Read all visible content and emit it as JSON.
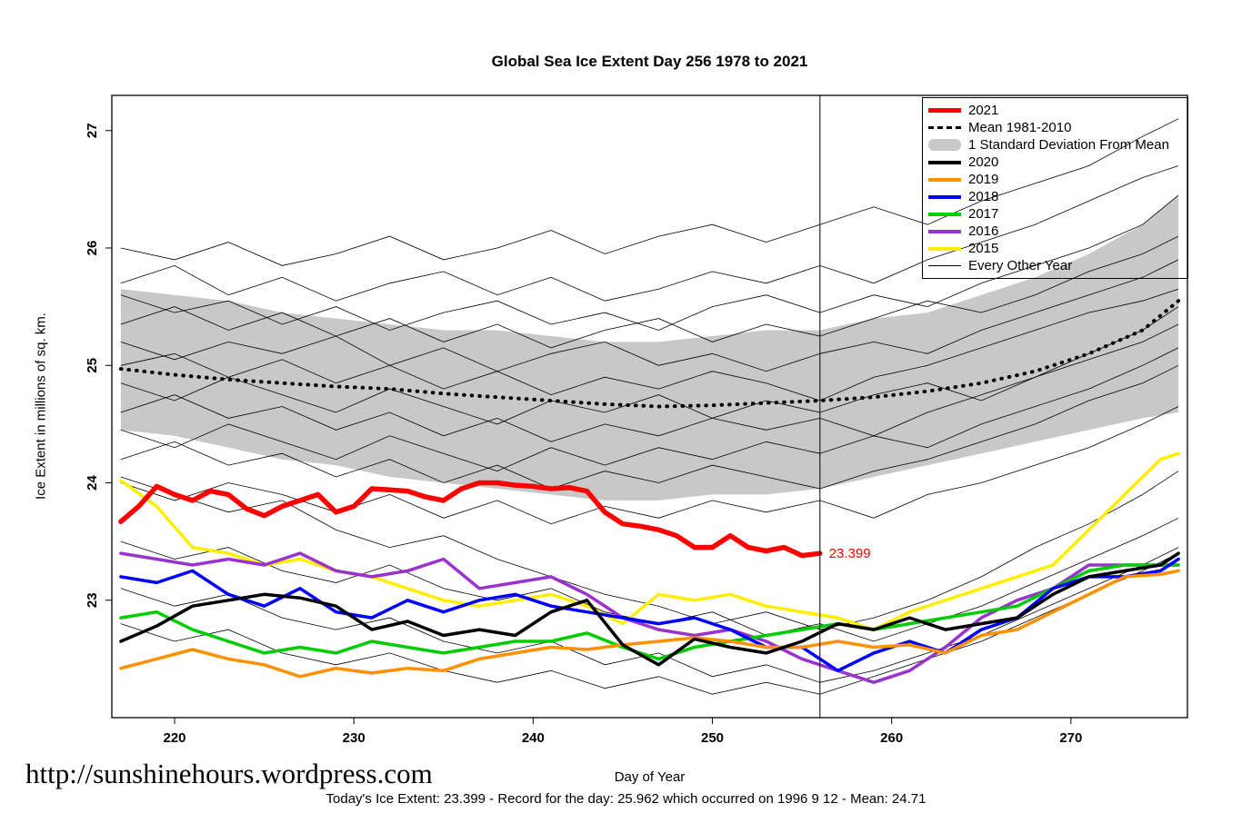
{
  "footer": {
    "url": "http://sunshinehours.wordpress.com",
    "summary": "Today's Ice Extent: 23.399  - Record for the day: 25.962 which occurred on 1996 9 12  - Mean: 24.71"
  },
  "legend": {
    "items": [
      {
        "label": "2021",
        "color": "#FF0000",
        "style": "line",
        "width": 5
      },
      {
        "label": "Mean 1981-2010",
        "color": "#000000",
        "style": "dashed"
      },
      {
        "label": "1 Standard Deviation From Mean",
        "color": "#C8C8C8",
        "style": "patch"
      },
      {
        "label": "2020",
        "color": "#000000",
        "style": "line",
        "width": 4
      },
      {
        "label": "2019",
        "color": "#FF9000",
        "style": "line",
        "width": 4
      },
      {
        "label": "2018",
        "color": "#0000FF",
        "style": "line",
        "width": 4
      },
      {
        "label": "2017",
        "color": "#00CD00",
        "style": "line",
        "width": 4
      },
      {
        "label": "2016",
        "color": "#9A32CD",
        "style": "line",
        "width": 4
      },
      {
        "label": "2015",
        "color": "#FFEE00",
        "style": "line",
        "width": 4
      },
      {
        "label": "Every Other Year",
        "color": "#000000",
        "style": "line",
        "width": 1
      }
    ]
  },
  "chart_data": {
    "type": "line",
    "title": "Global Sea Ice Extent Day 256 1978 to 2021",
    "xlabel": "Day of Year",
    "ylabel": "Ice Extent in millions of sq. km.",
    "xlim": [
      216.5,
      276.5
    ],
    "ylim": [
      22.0,
      27.3
    ],
    "xticks": [
      220,
      230,
      240,
      250,
      260,
      270
    ],
    "yticks": [
      23,
      24,
      25,
      26,
      27
    ],
    "vline_x": 256,
    "annotation": {
      "text": "23.399",
      "x": 256.3,
      "y": 23.4,
      "color": "#FF0000"
    },
    "base_x": [
      217,
      220,
      223,
      226,
      229,
      232,
      235,
      238,
      241,
      244,
      247,
      250,
      253,
      256,
      259,
      262,
      265,
      268,
      271,
      274,
      276
    ],
    "band": {
      "label": "1 Standard Deviation From Mean",
      "color": "#C8C8C8",
      "upper": [
        25.65,
        25.6,
        25.55,
        25.45,
        25.4,
        25.35,
        25.3,
        25.3,
        25.25,
        25.2,
        25.2,
        25.25,
        25.3,
        25.3,
        25.4,
        25.45,
        25.6,
        25.75,
        25.95,
        26.2,
        26.45
      ],
      "lower": [
        24.45,
        24.4,
        24.3,
        24.2,
        24.15,
        24.05,
        24.0,
        23.95,
        23.9,
        23.85,
        23.85,
        23.9,
        23.9,
        23.95,
        24.05,
        24.15,
        24.25,
        24.35,
        24.45,
        24.55,
        24.6
      ]
    },
    "mean": {
      "label": "Mean 1981-2010",
      "values": [
        24.97,
        24.92,
        24.88,
        24.85,
        24.82,
        24.8,
        24.76,
        24.73,
        24.7,
        24.67,
        24.65,
        24.66,
        24.68,
        24.7,
        24.73,
        24.78,
        24.85,
        24.95,
        25.1,
        25.3,
        25.55
      ]
    },
    "background": {
      "label": "Every Other Year",
      "lines": [
        [
          26.0,
          25.9,
          26.05,
          25.85,
          25.95,
          26.1,
          25.9,
          26.0,
          26.15,
          25.95,
          26.1,
          26.2,
          26.05,
          26.2,
          26.35,
          26.2,
          26.4,
          26.55,
          26.7,
          26.95,
          27.1
        ],
        [
          25.7,
          25.85,
          25.6,
          25.75,
          25.55,
          25.7,
          25.8,
          25.6,
          25.75,
          25.55,
          25.65,
          25.8,
          25.7,
          25.85,
          25.7,
          25.9,
          26.05,
          26.2,
          26.4,
          26.6,
          26.7
        ],
        [
          25.6,
          25.45,
          25.55,
          25.35,
          25.5,
          25.3,
          25.45,
          25.55,
          25.35,
          25.45,
          25.3,
          25.5,
          25.6,
          25.45,
          25.6,
          25.5,
          25.7,
          25.85,
          26.0,
          26.2,
          26.45
        ],
        [
          25.35,
          25.5,
          25.3,
          25.45,
          25.25,
          25.4,
          25.2,
          25.35,
          25.15,
          25.3,
          25.4,
          25.2,
          25.35,
          25.25,
          25.4,
          25.55,
          25.45,
          25.6,
          25.8,
          25.95,
          26.1
        ],
        [
          25.2,
          25.05,
          25.2,
          25.1,
          25.25,
          25.0,
          25.15,
          24.95,
          25.1,
          25.2,
          25.0,
          25.1,
          24.95,
          25.1,
          25.2,
          25.1,
          25.3,
          25.45,
          25.6,
          25.75,
          25.9
        ],
        [
          25.0,
          25.1,
          24.9,
          25.05,
          24.85,
          25.0,
          24.8,
          24.95,
          24.75,
          24.9,
          24.8,
          24.95,
          24.85,
          24.7,
          24.9,
          25.0,
          25.15,
          25.3,
          25.45,
          25.55,
          25.65
        ],
        [
          24.85,
          24.7,
          24.9,
          24.75,
          24.6,
          24.8,
          24.65,
          24.5,
          24.7,
          24.6,
          24.75,
          24.55,
          24.7,
          24.6,
          24.75,
          24.85,
          24.7,
          24.9,
          25.1,
          25.3,
          25.5
        ],
        [
          24.6,
          24.75,
          24.55,
          24.65,
          24.45,
          24.6,
          24.4,
          24.55,
          24.35,
          24.5,
          24.4,
          24.55,
          24.45,
          24.55,
          24.4,
          24.6,
          24.75,
          24.9,
          25.05,
          25.2,
          25.35
        ],
        [
          24.45,
          24.3,
          24.5,
          24.35,
          24.2,
          24.4,
          24.25,
          24.1,
          24.3,
          24.15,
          24.3,
          24.2,
          24.35,
          24.25,
          24.4,
          24.3,
          24.5,
          24.65,
          24.8,
          25.0,
          25.15
        ],
        [
          24.2,
          24.35,
          24.15,
          24.25,
          24.05,
          24.2,
          24.0,
          24.15,
          23.95,
          24.1,
          24.0,
          24.15,
          24.05,
          23.95,
          24.1,
          24.2,
          24.35,
          24.5,
          24.7,
          24.85,
          25.0
        ],
        [
          24.0,
          23.85,
          24.0,
          23.9,
          23.75,
          23.9,
          23.7,
          23.85,
          23.65,
          23.8,
          23.7,
          23.85,
          23.75,
          23.85,
          23.7,
          23.9,
          24.0,
          24.15,
          24.3,
          24.5,
          24.65
        ],
        [
          24.05,
          23.9,
          23.75,
          23.85,
          23.6,
          23.45,
          23.55,
          23.35,
          23.2,
          23.05,
          22.95,
          22.8,
          22.9,
          22.75,
          22.85,
          23.0,
          23.2,
          23.45,
          23.65,
          23.9,
          24.1
        ],
        [
          23.5,
          23.35,
          23.45,
          23.25,
          23.15,
          23.3,
          23.1,
          23.0,
          23.1,
          22.9,
          22.8,
          22.9,
          22.7,
          22.8,
          22.65,
          22.8,
          22.95,
          23.15,
          23.35,
          23.55,
          23.7
        ],
        [
          23.1,
          22.95,
          23.05,
          22.85,
          22.75,
          22.85,
          22.65,
          22.55,
          22.65,
          22.45,
          22.55,
          22.35,
          22.45,
          22.3,
          22.4,
          22.55,
          22.7,
          22.9,
          23.1,
          23.3,
          23.45
        ],
        [
          22.8,
          22.65,
          22.75,
          22.55,
          22.45,
          22.55,
          22.4,
          22.3,
          22.4,
          22.25,
          22.35,
          22.2,
          22.3,
          22.2,
          22.35,
          22.5,
          22.65,
          22.85,
          23.05,
          23.25,
          23.4
        ]
      ]
    },
    "series_x": [
      217,
      219,
      221,
      223,
      225,
      227,
      229,
      231,
      233,
      235,
      237,
      239,
      241,
      243,
      245,
      247,
      249,
      251,
      253,
      255,
      257,
      259,
      261,
      263,
      265,
      267,
      269,
      271,
      273,
      275,
      276
    ],
    "series": [
      {
        "name": "2015",
        "color": "#FFEE00",
        "width": 3.5,
        "values": [
          24.02,
          23.8,
          23.45,
          23.4,
          23.3,
          23.35,
          23.25,
          23.2,
          23.1,
          23.0,
          22.95,
          23.0,
          23.05,
          22.95,
          22.8,
          23.05,
          23.0,
          23.05,
          22.95,
          22.9,
          22.85,
          22.75,
          22.9,
          23.0,
          23.1,
          23.2,
          23.3,
          23.6,
          23.9,
          24.2,
          24.25
        ]
      },
      {
        "name": "2016",
        "color": "#9A32CD",
        "width": 3.5,
        "values": [
          23.4,
          23.35,
          23.3,
          23.35,
          23.3,
          23.4,
          23.25,
          23.2,
          23.25,
          23.35,
          23.1,
          23.15,
          23.2,
          23.05,
          22.85,
          22.75,
          22.7,
          22.75,
          22.65,
          22.5,
          22.4,
          22.3,
          22.4,
          22.6,
          22.85,
          23.0,
          23.1,
          23.3,
          23.3,
          23.3,
          23.3
        ]
      },
      {
        "name": "2017",
        "color": "#00CD00",
        "width": 3.5,
        "values": [
          22.85,
          22.9,
          22.75,
          22.65,
          22.55,
          22.6,
          22.55,
          22.65,
          22.6,
          22.55,
          22.6,
          22.65,
          22.65,
          22.72,
          22.6,
          22.5,
          22.6,
          22.65,
          22.7,
          22.75,
          22.8,
          22.75,
          22.8,
          22.85,
          22.9,
          22.95,
          23.1,
          23.25,
          23.3,
          23.3,
          23.3
        ]
      },
      {
        "name": "2018",
        "color": "#0000FF",
        "width": 3.5,
        "values": [
          23.2,
          23.15,
          23.25,
          23.05,
          22.95,
          23.1,
          22.9,
          22.85,
          23.0,
          22.9,
          23.0,
          23.05,
          22.95,
          22.9,
          22.85,
          22.8,
          22.85,
          22.75,
          22.6,
          22.6,
          22.4,
          22.55,
          22.65,
          22.55,
          22.75,
          22.85,
          23.1,
          23.2,
          23.2,
          23.25,
          23.35
        ]
      },
      {
        "name": "2019",
        "color": "#FF9000",
        "width": 3.5,
        "values": [
          22.42,
          22.5,
          22.58,
          22.5,
          22.45,
          22.35,
          22.42,
          22.38,
          22.42,
          22.4,
          22.5,
          22.55,
          22.6,
          22.58,
          22.62,
          22.65,
          22.68,
          22.65,
          22.6,
          22.6,
          22.65,
          22.6,
          22.62,
          22.55,
          22.7,
          22.75,
          22.9,
          23.05,
          23.2,
          23.22,
          23.25
        ]
      },
      {
        "name": "2020",
        "color": "#000000",
        "width": 3.5,
        "values": [
          22.65,
          22.78,
          22.95,
          23.0,
          23.05,
          23.02,
          22.95,
          22.75,
          22.82,
          22.7,
          22.75,
          22.7,
          22.9,
          23.0,
          22.62,
          22.45,
          22.67,
          22.6,
          22.55,
          22.65,
          22.8,
          22.75,
          22.85,
          22.75,
          22.8,
          22.85,
          23.05,
          23.2,
          23.25,
          23.3,
          23.4
        ]
      },
      {
        "name": "2021",
        "color": "#FF0000",
        "width": 5.5,
        "x": [
          217,
          218,
          219,
          220,
          221,
          222,
          223,
          224,
          225,
          226,
          227,
          228,
          229,
          230,
          231,
          232,
          233,
          234,
          235,
          236,
          237,
          238,
          239,
          240,
          241,
          242,
          243,
          244,
          245,
          246,
          247,
          248,
          249,
          250,
          251,
          252,
          253,
          254,
          255,
          256
        ],
        "values": [
          23.67,
          23.8,
          23.97,
          23.9,
          23.85,
          23.93,
          23.9,
          23.78,
          23.72,
          23.8,
          23.85,
          23.9,
          23.75,
          23.8,
          23.95,
          23.94,
          23.93,
          23.88,
          23.85,
          23.95,
          24.0,
          24.0,
          23.98,
          23.97,
          23.95,
          23.96,
          23.93,
          23.75,
          23.65,
          23.63,
          23.6,
          23.55,
          23.45,
          23.45,
          23.55,
          23.45,
          23.42,
          23.45,
          23.38,
          23.399
        ]
      }
    ]
  }
}
